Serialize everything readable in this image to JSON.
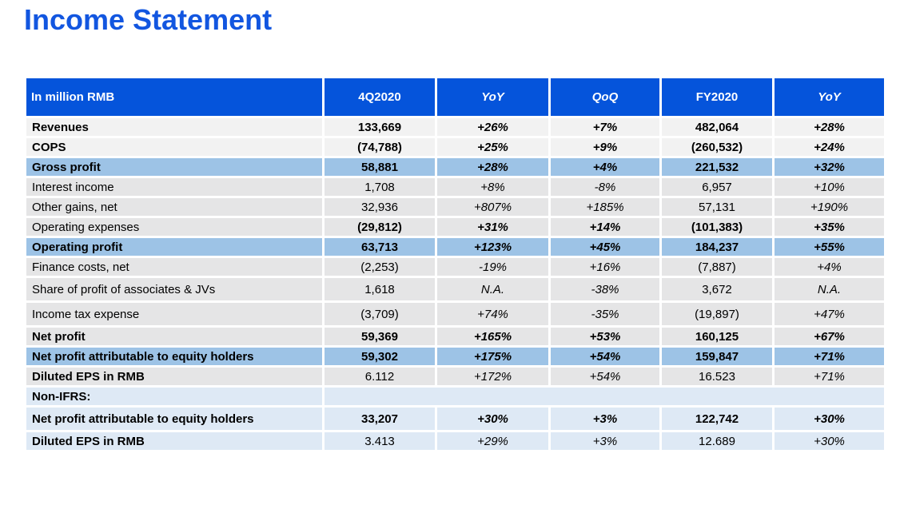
{
  "page_title": "Income Statement",
  "colors": {
    "title_blue": "#1256E0",
    "header_bg": "#0554DB",
    "header_text": "#FFFFFF",
    "row_light_gray": "#F2F2F2",
    "row_gray": "#E5E5E6",
    "row_highlight_blue": "#9DC3E6",
    "row_pale_blue": "#DEE9F5",
    "text": "#000000"
  },
  "table": {
    "header": [
      "In million RMB",
      "4Q2020",
      "YoY",
      "QoQ",
      "FY2020",
      "YoY"
    ],
    "rows": [
      {
        "label": "Revenues",
        "q": "133,669",
        "yoy": "+26%",
        "qoq": "+7%",
        "fy": "482,064",
        "fyyoy": "+28%",
        "style": "bold",
        "bg": "light",
        "tall": false,
        "merged": false
      },
      {
        "label": "COPS",
        "q": "(74,788)",
        "yoy": "+25%",
        "qoq": "+9%",
        "fy": "(260,532)",
        "fyyoy": "+24%",
        "style": "bold",
        "bg": "light",
        "tall": false,
        "merged": false
      },
      {
        "label": "Gross profit",
        "q": "58,881",
        "yoy": "+28%",
        "qoq": "+4%",
        "fy": "221,532",
        "fyyoy": "+32%",
        "style": "bold",
        "bg": "blue",
        "tall": false,
        "merged": false
      },
      {
        "label": "Interest income",
        "q": "1,708",
        "yoy": "+8%",
        "qoq": "-8%",
        "fy": "6,957",
        "fyyoy": "+10%",
        "style": "regular",
        "bg": "gray",
        "tall": false,
        "merged": false
      },
      {
        "label": "Other gains, net",
        "q": "32,936",
        "yoy": "+807%",
        "qoq": "+185%",
        "fy": "57,131",
        "fyyoy": "+190%",
        "style": "regular",
        "bg": "gray",
        "tall": false,
        "merged": false
      },
      {
        "label": "Operating expenses",
        "q": "(29,812)",
        "yoy": "+31%",
        "qoq": "+14%",
        "fy": "(101,383)",
        "fyyoy": "+35%",
        "style": "bold-values",
        "bg": "gray",
        "tall": false,
        "merged": false
      },
      {
        "label": "Operating profit",
        "q": "63,713",
        "yoy": "+123%",
        "qoq": "+45%",
        "fy": "184,237",
        "fyyoy": "+55%",
        "style": "bold",
        "bg": "blue",
        "tall": false,
        "merged": false
      },
      {
        "label": "Finance costs, net",
        "q": "(2,253)",
        "yoy": "-19%",
        "qoq": "+16%",
        "fy": "(7,887)",
        "fyyoy": "+4%",
        "style": "regular",
        "bg": "gray",
        "tall": false,
        "merged": false
      },
      {
        "label": "Share of profit of associates & JVs",
        "q": "1,618",
        "yoy": "N.A.",
        "qoq": "-38%",
        "fy": "3,672",
        "fyyoy": "N.A.",
        "style": "regular",
        "bg": "gray",
        "tall": true,
        "merged": false
      },
      {
        "label": "Income tax expense",
        "q": "(3,709)",
        "yoy": "+74%",
        "qoq": "-35%",
        "fy": "(19,897)",
        "fyyoy": "+47%",
        "style": "regular",
        "bg": "gray",
        "tall": true,
        "merged": false
      },
      {
        "label": "Net profit",
        "q": "59,369",
        "yoy": "+165%",
        "qoq": "+53%",
        "fy": "160,125",
        "fyyoy": "+67%",
        "style": "bold",
        "bg": "gray",
        "tall": false,
        "merged": false
      },
      {
        "label": "Net profit attributable to equity holders",
        "q": "59,302",
        "yoy": "+175%",
        "qoq": "+54%",
        "fy": "159,847",
        "fyyoy": "+71%",
        "style": "bold",
        "bg": "blue",
        "tall": false,
        "merged": false
      },
      {
        "label": "Diluted EPS in RMB",
        "q": "6.112",
        "yoy": "+172%",
        "qoq": "+54%",
        "fy": "16.523",
        "fyyoy": "+71%",
        "style": "bold-label",
        "bg": "gray",
        "tall": false,
        "merged": false
      },
      {
        "label": "Non-IFRS:",
        "q": "",
        "yoy": "",
        "qoq": "",
        "fy": "",
        "fyyoy": "",
        "style": "bold-label",
        "bg": "pale",
        "tall": false,
        "merged": true
      },
      {
        "label": "Net profit attributable to equity holders",
        "q": "33,207",
        "yoy": "+30%",
        "qoq": "+3%",
        "fy": "122,742",
        "fyyoy": "+30%",
        "style": "bold",
        "bg": "pale",
        "tall": true,
        "merged": false
      },
      {
        "label": "Diluted EPS in RMB",
        "q": "3.413",
        "yoy": "+29%",
        "qoq": "+3%",
        "fy": "12.689",
        "fyyoy": "+30%",
        "style": "bold-label",
        "bg": "pale",
        "tall": false,
        "merged": false
      }
    ]
  }
}
